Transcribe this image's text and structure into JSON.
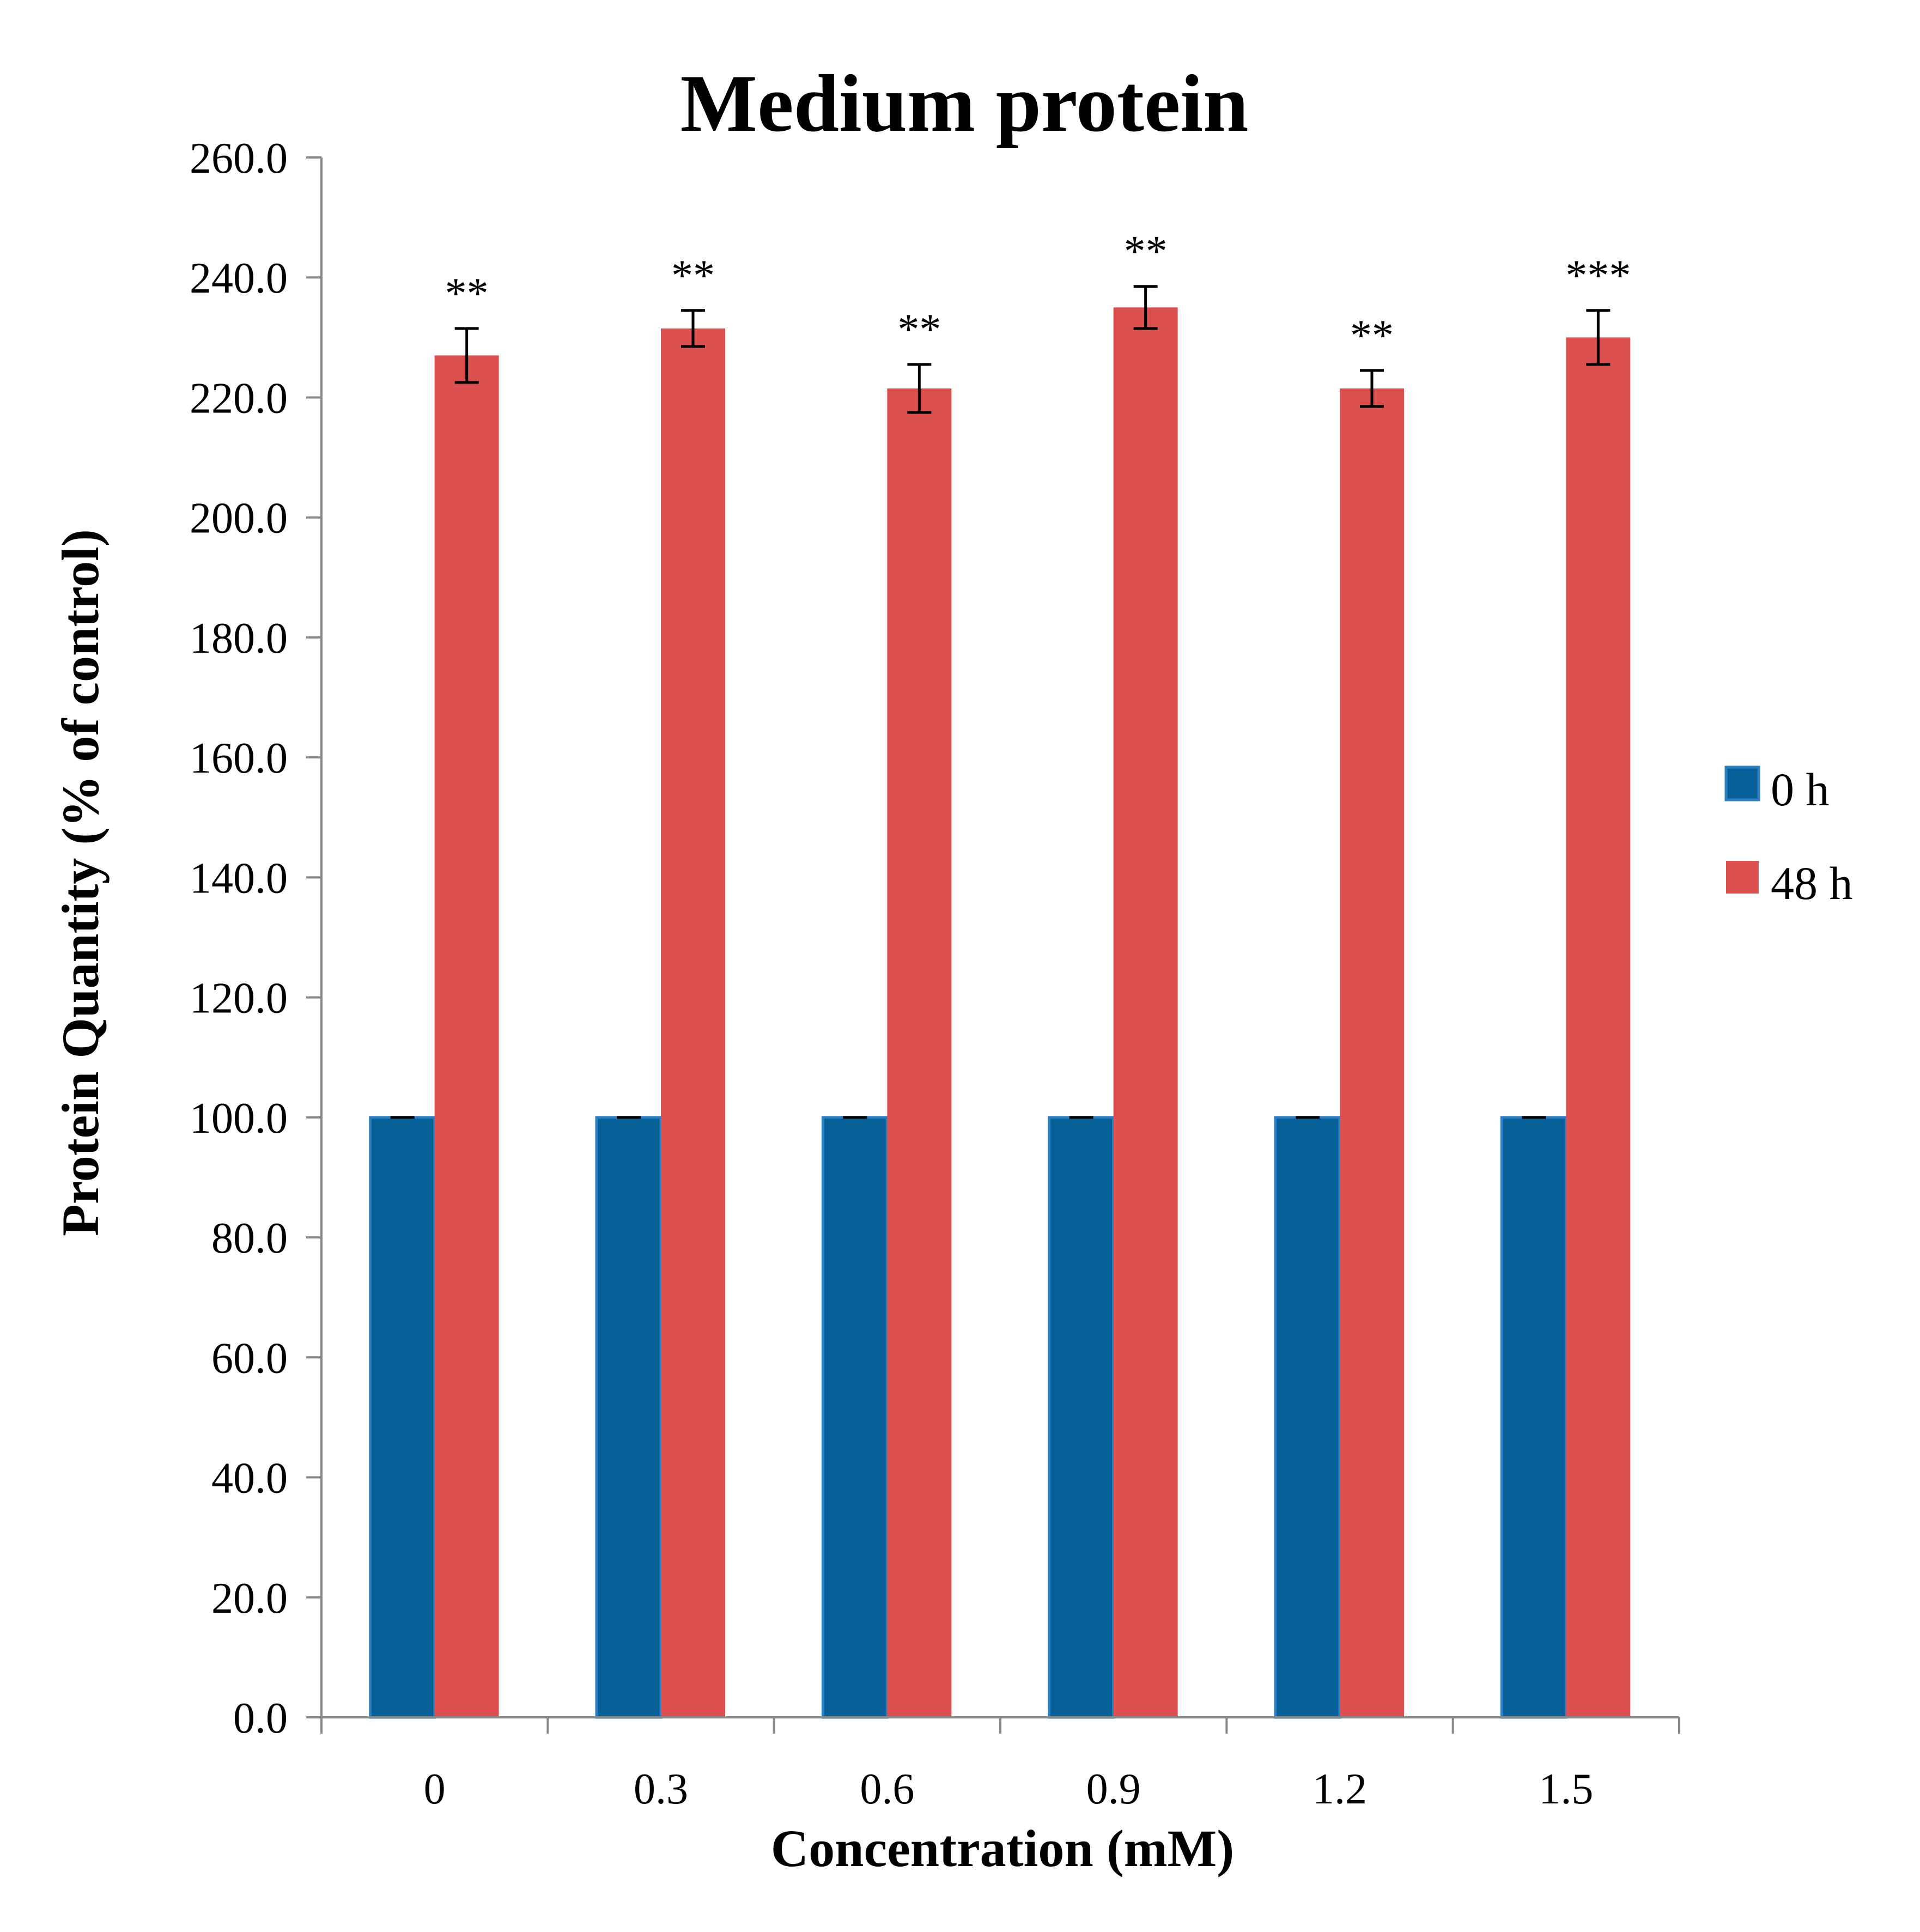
{
  "chart_data": {
    "type": "bar",
    "title": "Medium protein",
    "xlabel": "Concentration (mM)",
    "ylabel": "Protein Quantity (% of control)",
    "ylim": [
      0,
      260
    ],
    "ytick_step": 20,
    "ytick_labels": [
      "0.0",
      "20.0",
      "40.0",
      "60.0",
      "80.0",
      "100.0",
      "120.0",
      "140.0",
      "160.0",
      "180.0",
      "200.0",
      "220.0",
      "240.0",
      "260.0"
    ],
    "categories": [
      "0",
      "0.3",
      "0.6",
      "0.9",
      "1.2",
      "1.5"
    ],
    "legend_position": "right",
    "series": [
      {
        "name": "0 h",
        "color": "#075F97",
        "values": [
          100,
          100,
          100,
          100,
          100,
          100
        ],
        "errors": [
          0,
          0,
          0,
          0,
          0,
          0
        ]
      },
      {
        "name": "48 h",
        "color": "#DD5050",
        "values": [
          227,
          231.5,
          221.5,
          235,
          221.5,
          230
        ],
        "errors": [
          4.5,
          3,
          4,
          3.5,
          3,
          4.5
        ],
        "annotations": [
          "**",
          "**",
          "**",
          "**",
          "**",
          "***"
        ]
      }
    ]
  }
}
